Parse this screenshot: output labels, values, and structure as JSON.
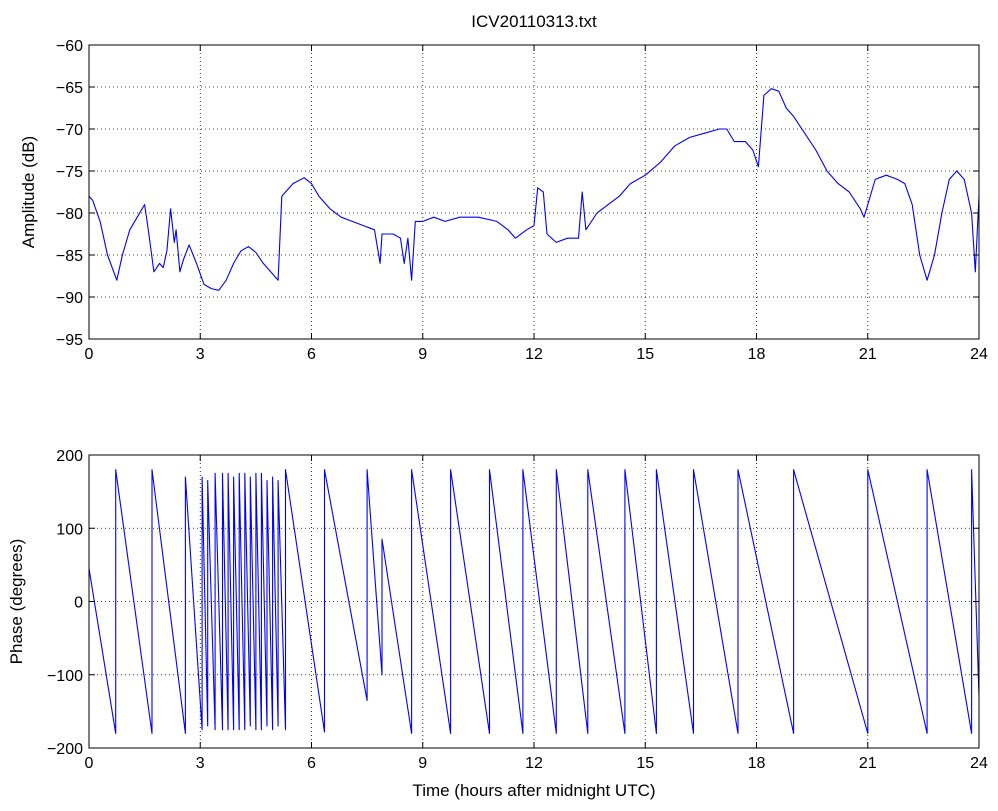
{
  "chart_data": [
    {
      "type": "line",
      "title": "ICV20110313.txt",
      "xlabel": "",
      "ylabel": "Amplitude (dB)",
      "xlim": [
        0,
        24
      ],
      "ylim": [
        -95,
        -60
      ],
      "xticks": [
        0,
        3,
        6,
        9,
        12,
        15,
        18,
        21,
        24
      ],
      "yticks": [
        -60,
        -65,
        -70,
        -75,
        -80,
        -85,
        -90,
        -95
      ],
      "grid": true,
      "color": "#0000ff",
      "series": [
        {
          "x": [
            0,
            0.1,
            0.3,
            0.5,
            0.75,
            0.9,
            1.1,
            1.3,
            1.5,
            1.6,
            1.75,
            1.9,
            2.0,
            2.1,
            2.2,
            2.3,
            2.35,
            2.45,
            2.55,
            2.7,
            2.9,
            3.1,
            3.3,
            3.5,
            3.7,
            3.9,
            4.1,
            4.3,
            4.5,
            4.7,
            4.9,
            5.1,
            5.2,
            5.3,
            5.5,
            5.8,
            6.0,
            6.2,
            6.5,
            6.8,
            7.1,
            7.4,
            7.7,
            7.85,
            7.9,
            8.0,
            8.2,
            8.4,
            8.5,
            8.6,
            8.7,
            8.8,
            9.0,
            9.3,
            9.6,
            10.0,
            10.5,
            11.0,
            11.3,
            11.5,
            11.8,
            12.0,
            12.1,
            12.25,
            12.35,
            12.6,
            12.9,
            13.2,
            13.3,
            13.4,
            13.7,
            14.0,
            14.3,
            14.6,
            15.0,
            15.4,
            15.8,
            16.2,
            16.6,
            17.0,
            17.2,
            17.4,
            17.7,
            17.9,
            18.05,
            18.2,
            18.4,
            18.6,
            18.8,
            19.0,
            19.3,
            19.6,
            19.9,
            20.2,
            20.5,
            20.8,
            20.9,
            21.0,
            21.2,
            21.5,
            21.8,
            22.0,
            22.2,
            22.4,
            22.6,
            22.8,
            23.0,
            23.2,
            23.4,
            23.6,
            23.8,
            23.9,
            24.0
          ],
          "y": [
            -78,
            -78.5,
            -81,
            -85,
            -88,
            -85,
            -82,
            -80.5,
            -79,
            -82,
            -87,
            -86,
            -86.5,
            -84.5,
            -79.5,
            -83.5,
            -82,
            -87,
            -85.5,
            -83.8,
            -86,
            -88.5,
            -89,
            -89.2,
            -88,
            -86,
            -84.5,
            -84,
            -84.7,
            -86,
            -87,
            -88,
            -78,
            -77.5,
            -76.5,
            -75.8,
            -76.5,
            -78,
            -79.5,
            -80.5,
            -81,
            -81.5,
            -82,
            -86,
            -82.5,
            -82.5,
            -82.5,
            -83,
            -86,
            -83,
            -88,
            -81,
            -81,
            -80.5,
            -81,
            -80.5,
            -80.5,
            -81,
            -82,
            -83,
            -82,
            -81.5,
            -77,
            -77.5,
            -82.5,
            -83.5,
            -83,
            -83,
            -77.5,
            -82,
            -80,
            -79,
            -78,
            -76.5,
            -75.5,
            -74,
            -72,
            -71,
            -70.5,
            -70,
            -70,
            -71.5,
            -71.5,
            -72.5,
            -74.5,
            -66,
            -65.2,
            -65.5,
            -67.5,
            -68.5,
            -70.5,
            -72.5,
            -75,
            -76.5,
            -77.5,
            -79.5,
            -80.5,
            -79,
            -76,
            -75.5,
            -76,
            -76.5,
            -79,
            -85,
            -88,
            -85,
            -80,
            -76,
            -75,
            -76,
            -80,
            -87,
            -78
          ]
        }
      ]
    },
    {
      "type": "line",
      "title": "",
      "xlabel": "Time (hours after midnight UTC)",
      "ylabel": "Phase (degrees)",
      "xlim": [
        0,
        24
      ],
      "ylim": [
        -200,
        200
      ],
      "xticks": [
        0,
        3,
        6,
        9,
        12,
        15,
        18,
        21,
        24
      ],
      "yticks": [
        200,
        100,
        0,
        -100,
        -200
      ],
      "grid": true,
      "color": "#0000ff",
      "series": [
        {
          "x": [
            0,
            0.72,
            0.72,
            1.7,
            1.7,
            2.6,
            2.6,
            3.05,
            3.05,
            3.2,
            3.2,
            3.4,
            3.4,
            3.6,
            3.6,
            3.75,
            3.75,
            3.9,
            3.9,
            4.05,
            4.05,
            4.2,
            4.2,
            4.35,
            4.35,
            4.5,
            4.5,
            4.65,
            4.65,
            4.8,
            4.8,
            4.95,
            4.95,
            5.1,
            5.1,
            5.3,
            5.3,
            6.35,
            6.35,
            7.5,
            7.5,
            7.9,
            7.9,
            8.7,
            8.7,
            9.75,
            9.75,
            10.8,
            10.8,
            11.7,
            11.7,
            12.6,
            12.6,
            13.45,
            13.45,
            14.45,
            14.45,
            15.3,
            15.3,
            16.3,
            16.3,
            17.5,
            17.5,
            19.0,
            19.0,
            21.0,
            21.0,
            22.6,
            22.6,
            23.8,
            23.8,
            24.0
          ],
          "y": [
            45,
            -180,
            180,
            -180,
            180,
            -180,
            170,
            -175,
            170,
            -170,
            165,
            -175,
            175,
            -175,
            175,
            -175,
            175,
            -175,
            170,
            -175,
            175,
            -175,
            175,
            -170,
            170,
            -175,
            175,
            -175,
            175,
            -170,
            165,
            -175,
            170,
            -170,
            165,
            -175,
            180,
            -178,
            180,
            -135,
            180,
            -100,
            85,
            -180,
            180,
            -180,
            180,
            -180,
            180,
            -180,
            180,
            -180,
            180,
            -180,
            180,
            -180,
            180,
            -180,
            180,
            -180,
            180,
            -180,
            180,
            -180,
            180,
            -180,
            180,
            -180,
            180,
            -180,
            180,
            -130
          ]
        }
      ]
    }
  ]
}
